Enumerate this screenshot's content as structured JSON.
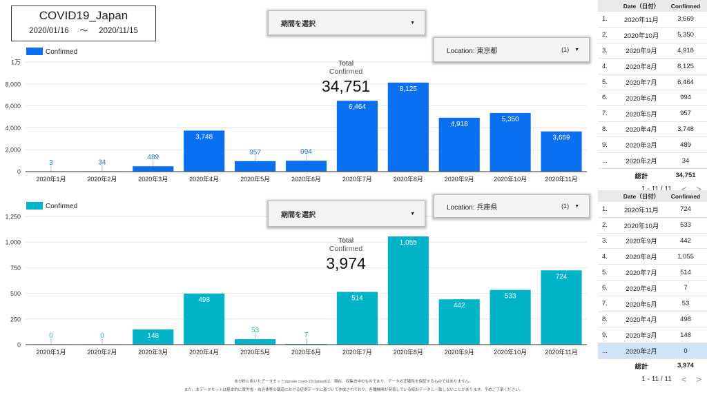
{
  "header": {
    "title": "COVID19_Japan",
    "date_start": "2020/01/16",
    "date_sep": "〜",
    "date_end": "2020/11/15"
  },
  "controls": {
    "period_select_label": "期間を選択",
    "top_location_label": "Location: 東京都",
    "top_location_count": "(1)",
    "bottom_location_label": "Location: 兵庫県",
    "bottom_location_count": "(1)",
    "dropdown_arrow": "▼"
  },
  "colors": {
    "tokyo_bar": "#0a6ff0",
    "tokyo_label": "#1a73d9",
    "hyogo_bar": "#00b3c8",
    "hyogo_label": "#2bb6c8",
    "grid": "#e6e6e6",
    "axis": "#555555"
  },
  "chart_data": [
    {
      "type": "bar",
      "title": "",
      "location": "東京都",
      "legend": "Confirmed",
      "legend_position": "top-left",
      "categories": [
        "2020年1月",
        "2020年2月",
        "2020年3月",
        "2020年4月",
        "2020年5月",
        "2020年6月",
        "2020年7月",
        "2020年8月",
        "2020年9月",
        "2020年10月",
        "2020年11月"
      ],
      "values": [
        3,
        34,
        489,
        3748,
        957,
        994,
        6464,
        8125,
        4918,
        5350,
        3669
      ],
      "value_labels": [
        "3",
        "34",
        "489",
        "3,748",
        "957",
        "994",
        "6,464",
        "8,125",
        "4,918",
        "5,350",
        "3,669"
      ],
      "yticks": [
        0,
        2000,
        4000,
        6000,
        8000,
        10000
      ],
      "ytick_labels": [
        "0",
        "2,000",
        "4,000",
        "6,000",
        "8,000",
        "1万"
      ],
      "ylim": [
        0,
        10000
      ],
      "grid": true,
      "scorecard": {
        "label1": "Total",
        "label2": "Confirmed",
        "value": "34,751"
      }
    },
    {
      "type": "bar",
      "title": "",
      "location": "兵庫県",
      "legend": "Confirmed",
      "legend_position": "top-left",
      "categories": [
        "2020年1月",
        "2020年2月",
        "2020年3月",
        "2020年4月",
        "2020年5月",
        "2020年6月",
        "2020年7月",
        "2020年8月",
        "2020年9月",
        "2020年10月",
        "2020年11月"
      ],
      "values": [
        0,
        0,
        148,
        498,
        53,
        7,
        514,
        1055,
        442,
        533,
        724
      ],
      "value_labels": [
        "0",
        "0",
        "148",
        "498",
        "53",
        "7",
        "514",
        "1,055",
        "442",
        "533",
        "724"
      ],
      "yticks": [
        0,
        250,
        500,
        750,
        1000,
        1250
      ],
      "ytick_labels": [
        "0",
        "250",
        "500",
        "750",
        "1,000",
        "1,250"
      ],
      "ylim": [
        0,
        1250
      ],
      "grid": true,
      "scorecard": {
        "label1": "Total",
        "label2": "Confirmed",
        "value": "3,974"
      }
    }
  ],
  "tables": [
    {
      "headers": [
        "",
        "Date（日付）",
        "Confirmed"
      ],
      "rows": [
        [
          "1.",
          "2020年11月",
          "3,669"
        ],
        [
          "2.",
          "2020年10月",
          "5,350"
        ],
        [
          "3.",
          "2020年9月",
          "4,918"
        ],
        [
          "4.",
          "2020年8月",
          "8,125"
        ],
        [
          "5.",
          "2020年7月",
          "6,464"
        ],
        [
          "6.",
          "2020年6月",
          "994"
        ],
        [
          "7.",
          "2020年5月",
          "957"
        ],
        [
          "8.",
          "2020年4月",
          "3,748"
        ],
        [
          "9.",
          "2020年3月",
          "489"
        ],
        [
          "...",
          "2020年2月",
          "34"
        ]
      ],
      "total_label": "総計",
      "total_value": "34,751",
      "pager": "1 - 11 / 11",
      "prev": "<",
      "next": ">"
    },
    {
      "headers": [
        "",
        "Date（日付）",
        "Confirmed"
      ],
      "rows": [
        [
          "1.",
          "2020年11月",
          "724"
        ],
        [
          "2.",
          "2020年10月",
          "533"
        ],
        [
          "3.",
          "2020年9月",
          "442"
        ],
        [
          "4.",
          "2020年8月",
          "1,055"
        ],
        [
          "5.",
          "2020年7月",
          "514"
        ],
        [
          "6.",
          "2020年6月",
          "7"
        ],
        [
          "7.",
          "2020年5月",
          "53"
        ],
        [
          "8.",
          "2020年4月",
          "498"
        ],
        [
          "9.",
          "2020年3月",
          "148"
        ],
        [
          "...",
          "2020年2月",
          "0"
        ]
      ],
      "selected_row": 9,
      "total_label": "総計",
      "total_value": "3,974",
      "pager": "1 - 11 / 11",
      "prev": "<",
      "next": ">"
    }
  ],
  "footer": {
    "line1": "本分析に用いたデータセットsignate covid-19 datasetは、現在、収集途中のものであり、データの正確性を保証するものではありません。",
    "line2": "また、本データセットは基本的に厚労省・自治体等の報道における症例データに基づいて作成されており、各種機関が発表している統計データと一致しないことがあります。予めご了承ください。"
  }
}
